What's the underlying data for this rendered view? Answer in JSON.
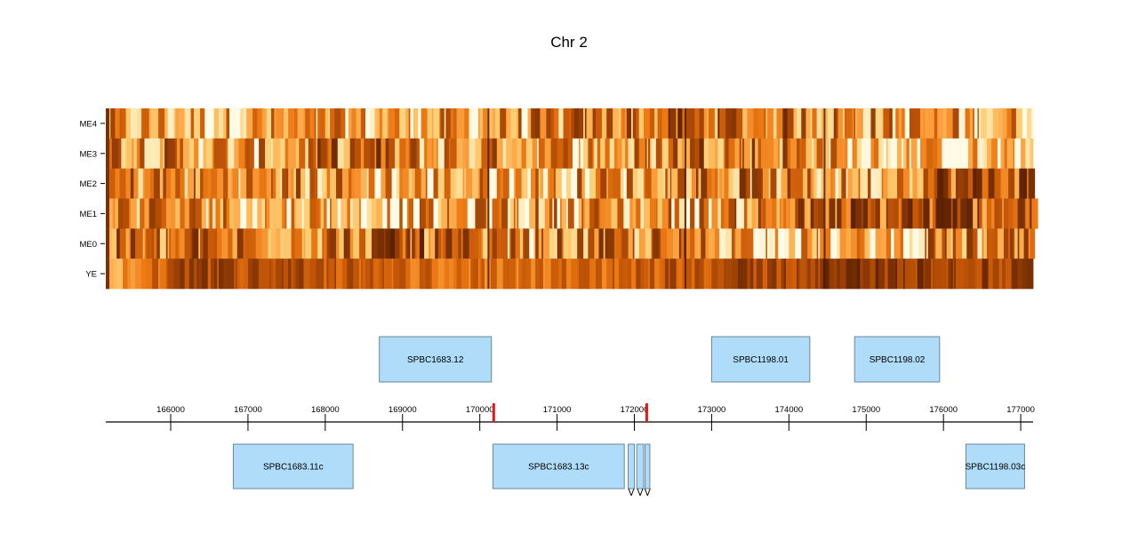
{
  "chart_data": {
    "type": "heatmap",
    "title": "Chr 2",
    "rows": [
      "ME4",
      "ME3",
      "ME2",
      "ME1",
      "ME0",
      "YE"
    ],
    "x_range": [
      165160,
      177160
    ],
    "x_ticks": [
      166000,
      167000,
      168000,
      169000,
      170000,
      171000,
      172000,
      173000,
      174000,
      175000,
      176000,
      177000
    ],
    "x_tick_labels": [
      "166000",
      "167000",
      "168000",
      "169000",
      "170000",
      "171000",
      "172000",
      "173000",
      "174000",
      "175000",
      "176000",
      "177000"
    ],
    "color_scale": [
      "#fffbe6",
      "#ffd27a",
      "#fba341",
      "#ec7a14",
      "#c95a08",
      "#8f3a04",
      "#5e2200"
    ],
    "row_profiles": {
      "ME4": [
        [
          165160,
          0.35
        ],
        [
          168500,
          0.3
        ],
        [
          170000,
          0.35
        ],
        [
          172700,
          0.6
        ],
        [
          174200,
          0.5
        ],
        [
          176000,
          0.35
        ]
      ],
      "ME3": [
        [
          165160,
          0.55
        ],
        [
          167200,
          0.35
        ],
        [
          168500,
          0.6
        ],
        [
          169000,
          0.45
        ],
        [
          172000,
          0.4
        ],
        [
          172700,
          0.6
        ],
        [
          174200,
          0.5
        ],
        [
          174800,
          0.2
        ],
        [
          177160,
          0.2
        ]
      ],
      "ME2": [
        [
          165160,
          0.5
        ],
        [
          167000,
          0.45
        ],
        [
          169500,
          0.35
        ],
        [
          172000,
          0.4
        ],
        [
          172700,
          0.55
        ],
        [
          174800,
          0.35
        ],
        [
          176000,
          0.7
        ],
        [
          177160,
          0.7
        ]
      ],
      "ME1": [
        [
          165160,
          0.5
        ],
        [
          167500,
          0.35
        ],
        [
          169000,
          0.3
        ],
        [
          170500,
          0.4
        ],
        [
          172700,
          0.4
        ],
        [
          174000,
          0.5
        ],
        [
          175500,
          0.7
        ],
        [
          177160,
          0.7
        ]
      ],
      "ME0": [
        [
          165160,
          0.5
        ],
        [
          168000,
          0.55
        ],
        [
          169000,
          0.65
        ],
        [
          170000,
          0.4
        ],
        [
          172700,
          0.5
        ],
        [
          174800,
          0.2
        ],
        [
          176000,
          0.45
        ],
        [
          177160,
          0.4
        ]
      ],
      "YE": [
        [
          165160,
          0.3
        ],
        [
          166200,
          0.75
        ],
        [
          167500,
          0.7
        ],
        [
          169000,
          0.6
        ],
        [
          170500,
          0.5
        ],
        [
          172700,
          0.7
        ],
        [
          174800,
          0.85
        ],
        [
          176000,
          0.8
        ],
        [
          177160,
          0.75
        ]
      ]
    },
    "dark_lines": [
      170100,
      172650,
      174450
    ],
    "markers": [
      {
        "position": 170180,
        "color": "#e8141e"
      },
      {
        "position": 172160,
        "color": "#e8141e"
      }
    ],
    "genes_top": [
      {
        "name": "SPBC1683.12",
        "start": 168700,
        "end": 170150
      },
      {
        "name": "SPBC1198.01",
        "start": 173000,
        "end": 174270
      },
      {
        "name": "SPBC1198.02",
        "start": 174850,
        "end": 175950
      }
    ],
    "genes_bottom": [
      {
        "name": "SPBC1683.11c",
        "start": 166810,
        "end": 168360
      },
      {
        "name": "SPBC1683.13c",
        "start": 170170,
        "end": 171870
      },
      {
        "name": "",
        "start": 171920,
        "end": 172000
      },
      {
        "name": "",
        "start": 172030,
        "end": 172120
      },
      {
        "name": "",
        "start": 172140,
        "end": 172200
      },
      {
        "name": "SPBC1198.03c",
        "start": 176290,
        "end": 177050
      }
    ]
  }
}
